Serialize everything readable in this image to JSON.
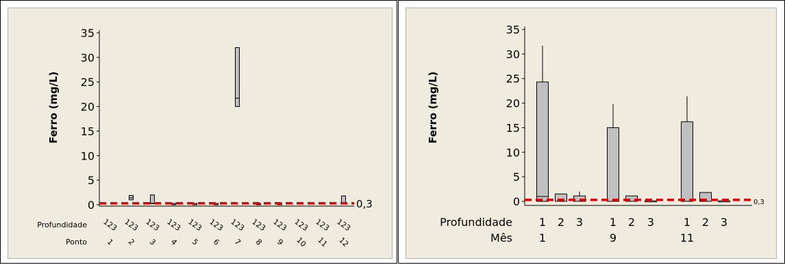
{
  "left_chart": {
    "ylabel": "Ferro (mg/L)",
    "yticks": [
      "35",
      "30",
      "25",
      "20",
      "15",
      "10",
      "5",
      "0"
    ],
    "reference_label": "0,3",
    "row_label_1": "Profundidade",
    "row_label_2": "Ponto",
    "profundidade_group": "123",
    "ponto_labels": [
      "1",
      "2",
      "3",
      "4",
      "5",
      "6",
      "7",
      "8",
      "9",
      "10",
      "11",
      "12"
    ]
  },
  "right_chart": {
    "ylabel": "Ferro (mg/L)",
    "yticks": [
      "35",
      "30",
      "25",
      "20",
      "15",
      "10",
      "5",
      "0"
    ],
    "reference_label": "0,3",
    "row_label_1": "Profundidade",
    "row_label_2": "Mês",
    "profundidade_labels": [
      "1",
      "2",
      "3",
      "1",
      "2",
      "3",
      "1",
      "2",
      "3"
    ],
    "mes_labels": [
      "1",
      "9",
      "11"
    ]
  },
  "chart_data": [
    {
      "type": "box",
      "ylabel": "Ferro (mg/L)",
      "ylim": [
        0,
        35
      ],
      "reference_line": 0.3,
      "reference_color": "#e00000",
      "box_color": "#c0c0c0",
      "categories_outer": [
        "1",
        "2",
        "3",
        "4",
        "5",
        "6",
        "7",
        "8",
        "9",
        "10",
        "11",
        "12"
      ],
      "categories_inner": [
        "1",
        "2",
        "3"
      ],
      "boxes": [
        {
          "ponto": "2",
          "q1": 1.0,
          "median": 1.4,
          "q3": 1.9
        },
        {
          "ponto": "3",
          "q1": 0.2,
          "median": 0.3,
          "q3": 2.0
        },
        {
          "ponto": "4",
          "q1": 0.0,
          "median": 0.05,
          "q3": 0.15
        },
        {
          "ponto": "5",
          "q1": 0.0,
          "median": 0.05,
          "q3": 0.1
        },
        {
          "ponto": "6",
          "q1": 0.0,
          "median": 0.05,
          "q3": 0.15
        },
        {
          "ponto": "7",
          "q1": 20.0,
          "median": 21.7,
          "q3": 32.0
        },
        {
          "ponto": "8",
          "q1": 0.0,
          "median": 0.05,
          "q3": 0.15
        },
        {
          "ponto": "9",
          "q1": 0.0,
          "median": 0.05,
          "q3": 0.15
        },
        {
          "ponto": "12",
          "q1": 0.2,
          "median": 0.3,
          "q3": 1.8
        }
      ]
    },
    {
      "type": "bar",
      "ylabel": "Ferro (mg/L)",
      "ylim": [
        0,
        35
      ],
      "reference_line": 0.3,
      "reference_color": "#e00000",
      "bar_color": "#c0c0c0",
      "groups": [
        "1",
        "9",
        "11"
      ],
      "categories": [
        "1",
        "2",
        "3"
      ],
      "bars": [
        {
          "mes": "1",
          "profundidade": "1",
          "value": 24.3,
          "error_upper": 31.7,
          "inner_mark": 1.0
        },
        {
          "mes": "1",
          "profundidade": "2",
          "value": 1.5
        },
        {
          "mes": "1",
          "profundidade": "3",
          "value": 1.1,
          "error_upper": 2.0
        },
        {
          "mes": "9",
          "profundidade": "1",
          "value": 15.0,
          "error_upper": 19.8
        },
        {
          "mes": "9",
          "profundidade": "2",
          "value": 1.1
        },
        {
          "mes": "9",
          "profundidade": "3",
          "value": 0.1
        },
        {
          "mes": "11",
          "profundidade": "1",
          "value": 16.2,
          "error_upper": 21.4
        },
        {
          "mes": "11",
          "profundidade": "2",
          "value": 1.8
        },
        {
          "mes": "11",
          "profundidade": "3",
          "value": 0.1
        }
      ]
    }
  ]
}
